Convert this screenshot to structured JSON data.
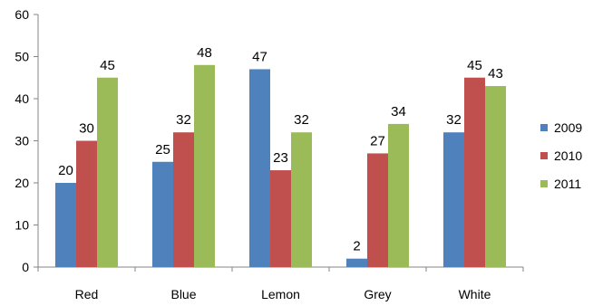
{
  "chart_data": {
    "type": "bar",
    "categories": [
      "Red",
      "Blue",
      "Lemon",
      "Grey",
      "White"
    ],
    "series": [
      {
        "name": "2009",
        "color": "#4F81BD",
        "values": [
          20,
          25,
          47,
          2,
          32
        ]
      },
      {
        "name": "2010",
        "color": "#C0504D",
        "values": [
          30,
          32,
          23,
          27,
          45
        ]
      },
      {
        "name": "2011",
        "color": "#9BBB59",
        "values": [
          45,
          48,
          32,
          34,
          43
        ]
      }
    ],
    "ylim": [
      0,
      60
    ],
    "yticks": [
      0,
      10,
      20,
      30,
      40,
      50,
      60
    ],
    "grid": false,
    "legend_position": "right",
    "data_labels": true
  }
}
